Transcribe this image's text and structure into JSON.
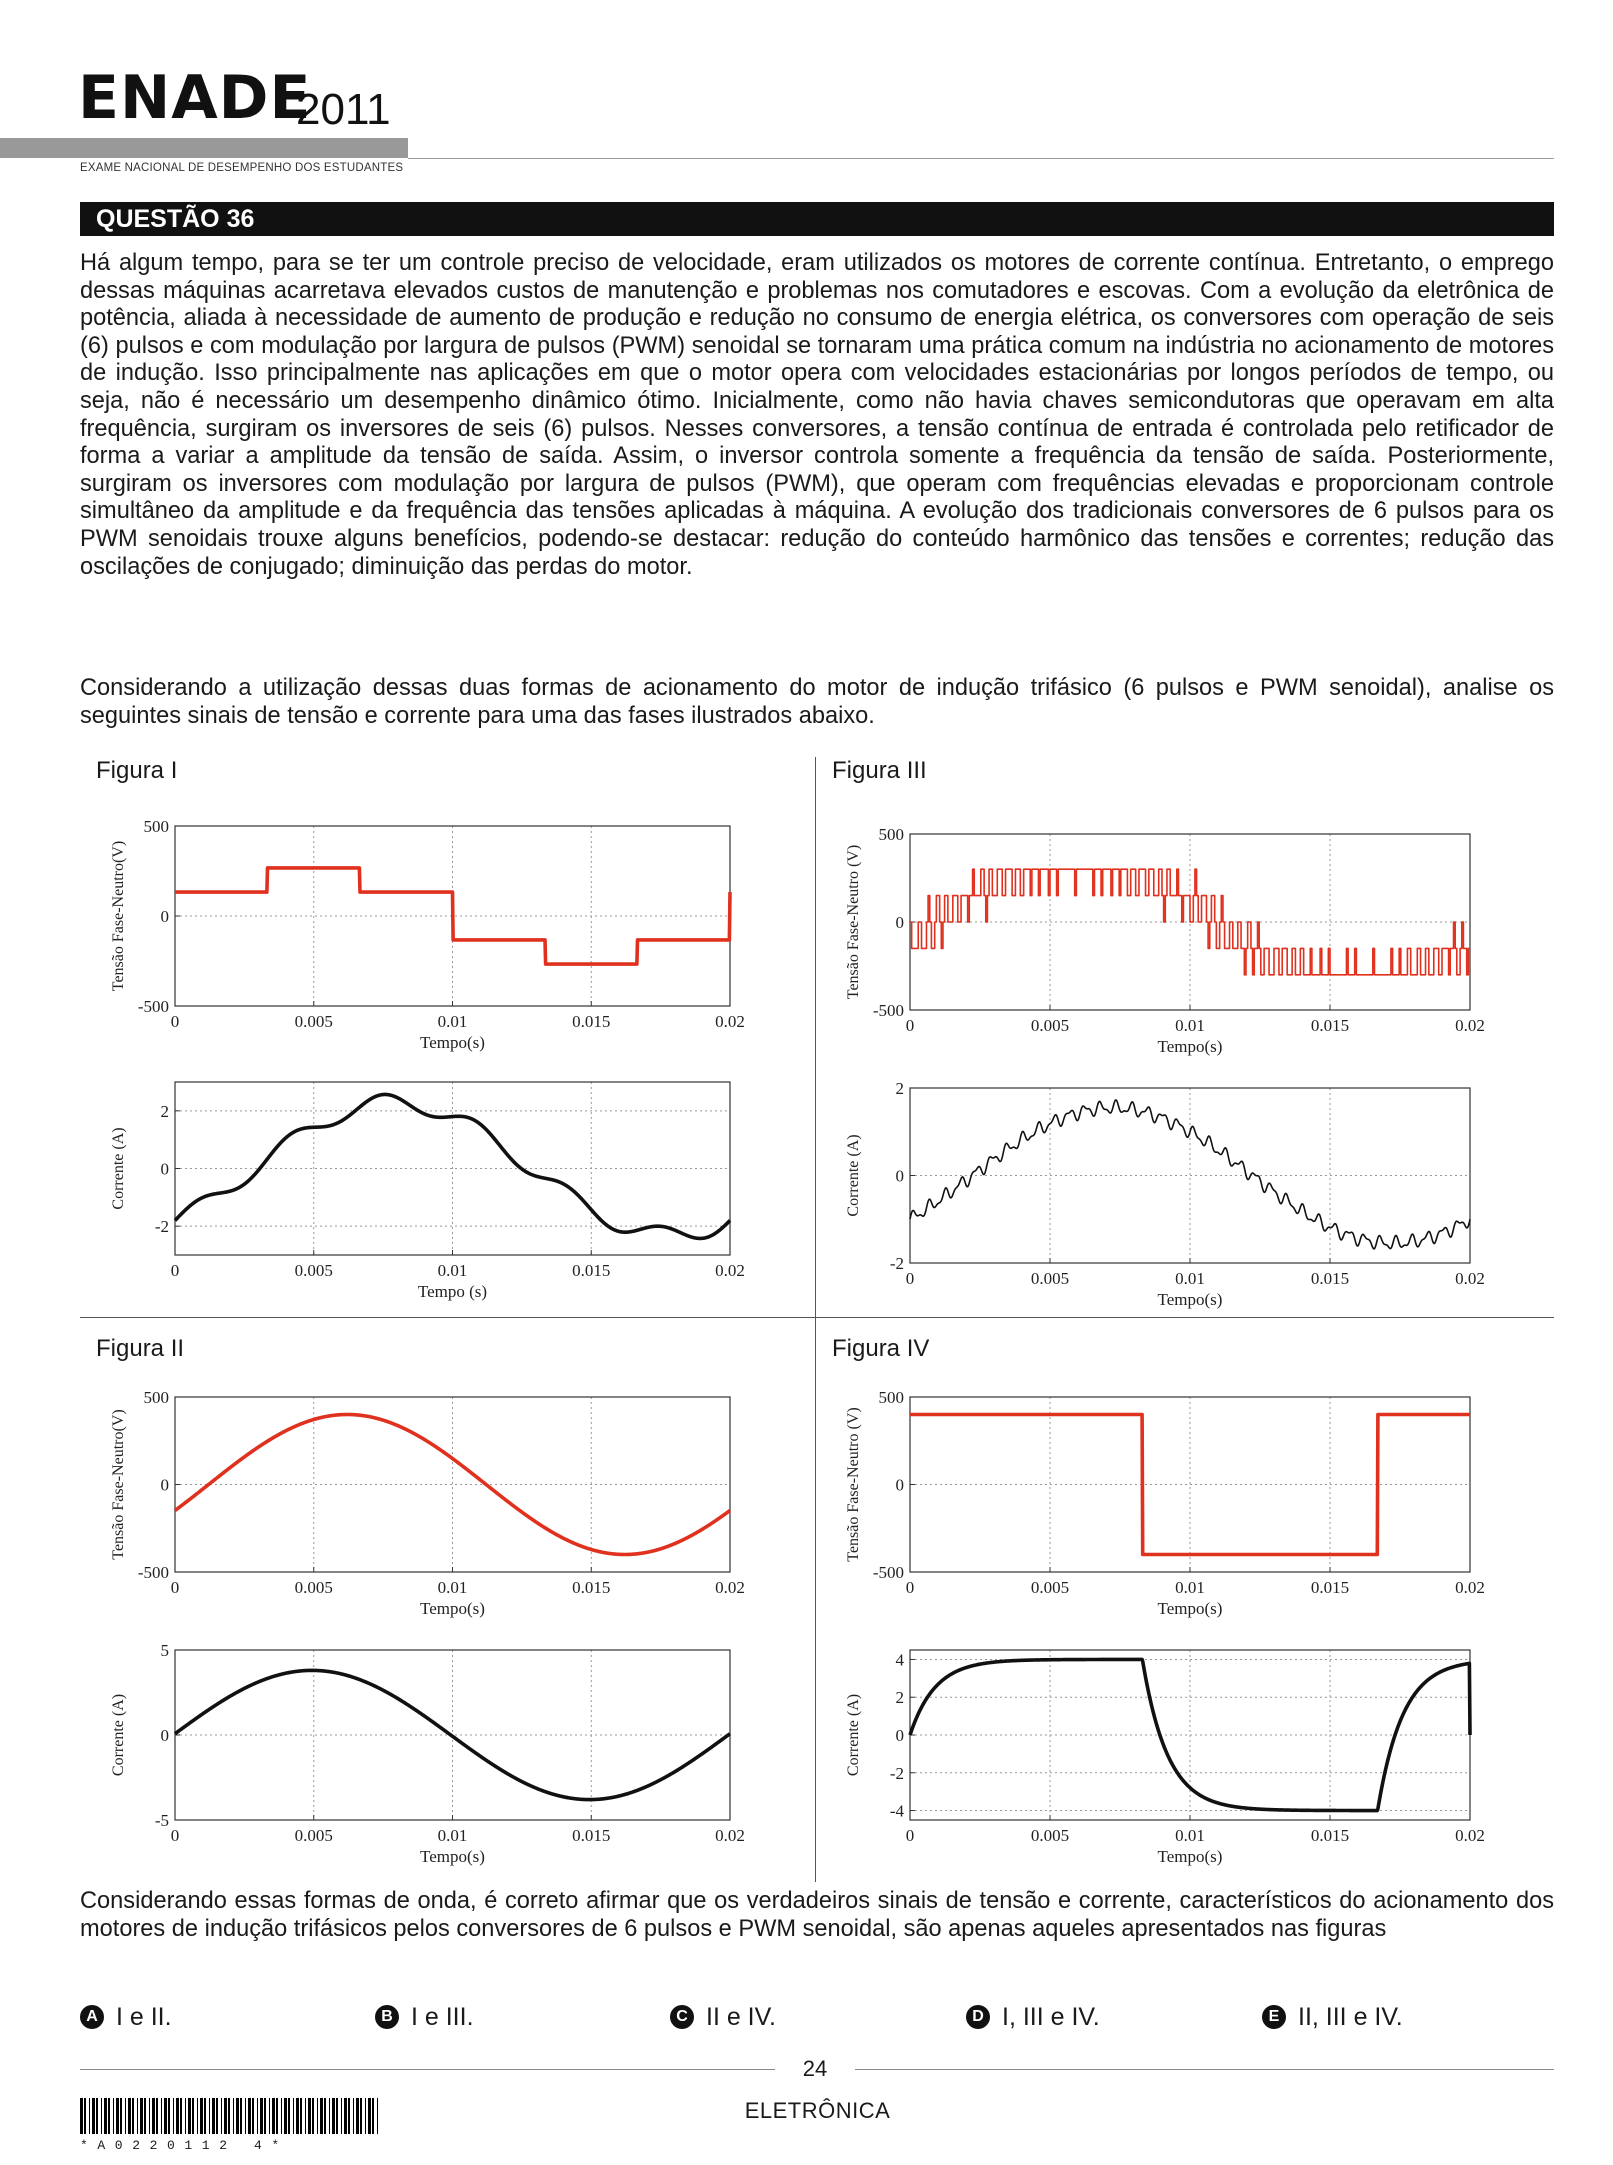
{
  "header": {
    "logo_main": "ENADE",
    "logo_year": "2011",
    "logo_subtitle": "EXAME NACIONAL DE DESEMPENHO DOS ESTUDANTES"
  },
  "question": {
    "title": "QUESTÃO 36",
    "paragraph1": "Há algum tempo, para se ter um controle preciso de velocidade, eram utilizados os motores de corrente contínua. Entretanto, o emprego dessas máquinas acarretava elevados custos de manutenção e problemas nos comutadores e escovas. Com a evolução da eletrônica de potência, aliada à necessidade de aumento de produção e redução no consumo de energia elétrica, os conversores com operação de seis (6) pulsos e com modulação por largura de pulsos (PWM) senoidal se tornaram uma prática comum na indústria no acionamento de motores de indução. Isso principalmente nas aplicações em que o motor opera com velocidades estacionárias por longos períodos de tempo, ou seja, não é necessário um desempenho dinâmico ótimo. Inicialmente, como não havia chaves semicondutoras que operavam em alta frequência, surgiram os inversores de seis (6) pulsos. Nesses conversores, a tensão contínua de entrada é controlada pelo retificador de forma a variar a amplitude da tensão de saída. Assim, o inversor controla somente a frequência da tensão de saída. Posteriormente, surgiram os inversores com modulação por largura de pulsos (PWM), que operam com frequências elevadas e proporcionam controle simultâneo da amplitude e da frequência das tensões aplicadas à máquina. A evolução dos tradicionais conversores de 6 pulsos para os PWM senoidais trouxe alguns benefícios, podendo-se destacar: redução do conteúdo harmônico das tensões e correntes; redução das oscilações de conjugado; diminuição das perdas do motor.",
    "paragraph2": "Considerando a utilização dessas duas formas de acionamento do motor de indução trifásico (6 pulsos e PWM senoidal), analise os seguintes sinais de tensão e corrente para uma das fases ilustrados abaixo.",
    "paragraph3": "Considerando essas formas de onda, é correto afirmar que os verdadeiros sinais de tensão e corrente, característicos do acionamento dos motores de indução trifásicos pelos conversores de 6 pulsos e PWM senoidal, são apenas aqueles apresentados nas figuras"
  },
  "figures": {
    "fig1": "Figura I",
    "fig2": "Figura II",
    "fig3": "Figura III",
    "fig4": "Figura IV"
  },
  "axes": {
    "voltage_ylabel": "Tensão Fase-Neutro(V)",
    "voltage_ylabel_b": "Tensão Fase-Neutro (V)",
    "current_ylabel": "Corrente (A)",
    "xlabel": "Tempo(s)",
    "xlabel_b": "Tempo (s)",
    "xticks": [
      "0",
      "0.005",
      "0.01",
      "0.015",
      "0.02"
    ]
  },
  "chart_data": [
    {
      "id": "fig1-voltage",
      "type": "line",
      "color": "#e0301e",
      "xlim": [
        0,
        0.02
      ],
      "ylim": [
        -500,
        500
      ],
      "yticks": [
        "500",
        "0",
        "-500"
      ],
      "waveform": "six-step"
    },
    {
      "id": "fig1-current",
      "type": "line",
      "color": "#111111",
      "xlim": [
        0,
        0.02
      ],
      "ylim": [
        -3,
        3
      ],
      "yticks": [
        "2",
        "0",
        "-2"
      ],
      "waveform": "six-step-current"
    },
    {
      "id": "fig2-voltage",
      "type": "line",
      "color": "#e0301e",
      "xlim": [
        0,
        0.02
      ],
      "ylim": [
        -500,
        500
      ],
      "yticks": [
        "500",
        "0",
        "-500"
      ],
      "waveform": "sine",
      "amplitude": 400
    },
    {
      "id": "fig2-current",
      "type": "line",
      "color": "#111111",
      "xlim": [
        0,
        0.02
      ],
      "ylim": [
        -5,
        5
      ],
      "yticks": [
        "5",
        "0",
        "-5"
      ],
      "waveform": "sine",
      "amplitude": 3.8
    },
    {
      "id": "fig3-voltage",
      "type": "line",
      "color": "#e0301e",
      "xlim": [
        0,
        0.02
      ],
      "ylim": [
        -500,
        500
      ],
      "yticks": [
        "500",
        "0",
        "-500"
      ],
      "waveform": "pwm",
      "levels": [
        -300,
        -150,
        0,
        150,
        300
      ]
    },
    {
      "id": "fig3-current",
      "type": "line",
      "color": "#111111",
      "xlim": [
        0,
        0.02
      ],
      "ylim": [
        -2,
        2
      ],
      "yticks": [
        "2",
        "0",
        "-2"
      ],
      "waveform": "sine-ripple",
      "amplitude": 1.55
    },
    {
      "id": "fig4-voltage",
      "type": "line",
      "color": "#e0301e",
      "xlim": [
        0,
        0.02
      ],
      "ylim": [
        -500,
        500
      ],
      "yticks": [
        "500",
        "0",
        "-500"
      ],
      "waveform": "square",
      "amplitude": 400
    },
    {
      "id": "fig4-current",
      "type": "line",
      "color": "#111111",
      "xlim": [
        0,
        0.02
      ],
      "ylim": [
        -4.5,
        4.5
      ],
      "yticks": [
        "4",
        "2",
        "0",
        "-2",
        "-4"
      ],
      "waveform": "square-current",
      "amplitude": 4
    }
  ],
  "options": [
    {
      "letter": "A",
      "text": "I e II."
    },
    {
      "letter": "B",
      "text": "I e III."
    },
    {
      "letter": "C",
      "text": "II e IV."
    },
    {
      "letter": "D",
      "text": "I, III e IV."
    },
    {
      "letter": "E",
      "text": "II, III e IV."
    }
  ],
  "footer": {
    "page": "24",
    "course": "ELETRÔNICA",
    "barcode_text": "*A0220112 4*"
  }
}
